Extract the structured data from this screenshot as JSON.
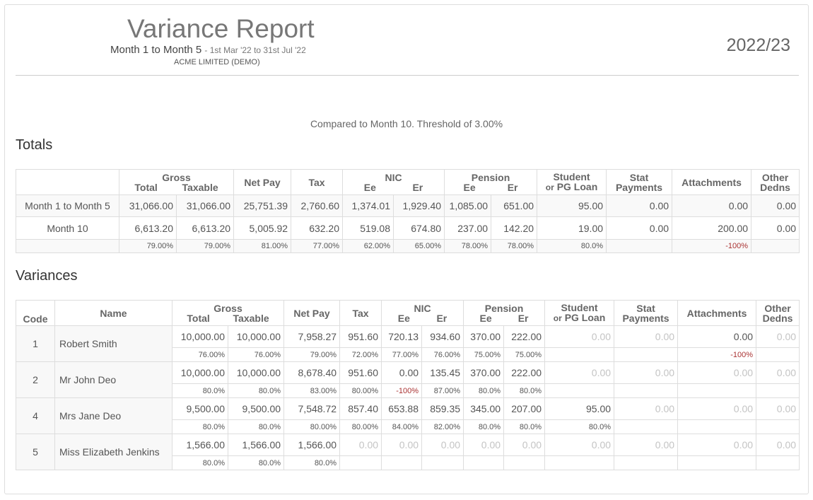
{
  "header": {
    "title": "Variance Report",
    "period": "Month 1 to Month 5",
    "dates": "- 1st Mar '22 to 31st Jul '22",
    "company": "ACME LIMITED (DEMO)",
    "tax_year": "2022/23"
  },
  "compare_text": "Compared to Month 10. Threshold of 3.00%",
  "totals": {
    "heading": "Totals",
    "columns": {
      "gross": "Gross",
      "total": "Total",
      "taxable": "Taxable",
      "net_pay": "Net Pay",
      "tax": "Tax",
      "nic": "NIC",
      "ee": "Ee",
      "er": "Er",
      "pension": "Pension",
      "student": "Student",
      "or_pg": "or",
      "pg_loan": "PG Loan",
      "stat": "Stat",
      "payments": "Payments",
      "attachments": "Attachments",
      "other": "Other",
      "dedns": "Dedns"
    },
    "rows": [
      {
        "label": "Month 1 to Month 5",
        "values": [
          "31,066.00",
          "31,066.00",
          "25,751.39",
          "2,760.60",
          "1,374.01",
          "1,929.40",
          "1,085.00",
          "651.00",
          "95.00",
          "0.00",
          "0.00",
          "0.00"
        ]
      },
      {
        "label": "Month 10",
        "values": [
          "6,613.20",
          "6,613.20",
          "5,005.92",
          "632.20",
          "519.08",
          "674.80",
          "237.00",
          "142.20",
          "19.00",
          "0.00",
          "200.00",
          "0.00"
        ]
      }
    ],
    "pct": [
      "79.00%",
      "79.00%",
      "81.00%",
      "77.00%",
      "62.00%",
      "65.00%",
      "78.00%",
      "78.00%",
      "80.0%",
      "",
      "-100%",
      ""
    ]
  },
  "variances": {
    "heading": "Variances",
    "code_label": "Code",
    "name_label": "Name",
    "rows": [
      {
        "code": "1",
        "name": "Robert Smith",
        "values": [
          "10,000.00",
          "10,000.00",
          "7,958.27",
          "951.60",
          "720.13",
          "934.60",
          "370.00",
          "222.00",
          "0.00",
          "0.00",
          "0.00",
          "0.00"
        ],
        "pct": [
          "76.00%",
          "76.00%",
          "79.00%",
          "72.00%",
          "77.00%",
          "76.00%",
          "75.00%",
          "75.00%",
          "",
          "",
          "-100%",
          ""
        ]
      },
      {
        "code": "2",
        "name": "Mr John Deo",
        "values": [
          "10,000.00",
          "10,000.00",
          "8,678.40",
          "951.60",
          "0.00",
          "135.45",
          "370.00",
          "222.00",
          "0.00",
          "0.00",
          "0.00",
          "0.00"
        ],
        "pct": [
          "80.0%",
          "80.0%",
          "83.00%",
          "80.00%",
          "-100%",
          "87.00%",
          "80.0%",
          "80.0%",
          "",
          "",
          "",
          ""
        ]
      },
      {
        "code": "4",
        "name": "Mrs Jane Deo",
        "values": [
          "9,500.00",
          "9,500.00",
          "7,548.72",
          "857.40",
          "653.88",
          "859.35",
          "345.00",
          "207.00",
          "95.00",
          "0.00",
          "0.00",
          "0.00"
        ],
        "pct": [
          "80.0%",
          "80.0%",
          "80.00%",
          "80.00%",
          "84.00%",
          "82.00%",
          "80.0%",
          "80.0%",
          "80.0%",
          "",
          "",
          ""
        ]
      },
      {
        "code": "5",
        "name": "Miss Elizabeth Jenkins",
        "values": [
          "1,566.00",
          "1,566.00",
          "1,566.00",
          "0.00",
          "0.00",
          "0.00",
          "0.00",
          "0.00",
          "0.00",
          "0.00",
          "0.00",
          "0.00"
        ],
        "pct": [
          "80.0%",
          "80.0%",
          "80.0%",
          "",
          "",
          "",
          "",
          "",
          "",
          "",
          "",
          ""
        ]
      }
    ]
  }
}
